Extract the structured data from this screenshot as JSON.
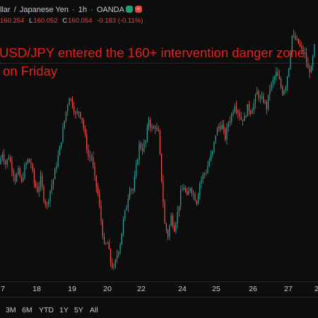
{
  "header": {
    "symbol_fragment": "llar",
    "separator": "/",
    "quote_currency": "Japanese Yen",
    "interval": "1h",
    "exchange": "OANDA",
    "dot_separator": "·",
    "status_red_glyph": "≈"
  },
  "ohlc": {
    "open_value": "160.254",
    "low_label": "L",
    "low_value": "160.052",
    "close_label": "C",
    "close_value": "160.054",
    "change": "-0.183 (-0.11%)"
  },
  "annotation": {
    "line1": "USD/JPY entered the 160+ intervention danger zone",
    "line2": "on Friday",
    "color": "#e8201c"
  },
  "x_axis": {
    "ticks": [
      "7",
      "18",
      "19",
      "20",
      "22",
      "24",
      "25",
      "26",
      "27",
      "2"
    ]
  },
  "range_buttons": [
    "3M",
    "6M",
    "YTD",
    "1Y",
    "5Y",
    "All"
  ],
  "colors": {
    "up": "#26a69a",
    "down": "#ef5350",
    "background": "#0d0d0d"
  },
  "chart_data": {
    "type": "candlestick",
    "y_axis_range": [
      154.0,
      160.6
    ],
    "close_path": [
      157.0,
      157.3,
      157.0,
      157.2,
      156.9,
      156.6,
      156.8,
      156.5,
      156.9,
      157.1,
      157.0,
      156.5,
      156.3,
      156.6,
      156.1,
      155.9,
      156.3,
      156.6,
      157.0,
      157.4,
      157.9,
      158.4,
      158.8,
      158.6,
      158.3,
      158.4,
      158.2,
      157.7,
      157.2,
      157.2,
      156.6,
      156.2,
      155.5,
      154.8,
      154.9,
      154.4,
      154.2,
      154.6,
      154.9,
      155.5,
      155.9,
      156.4,
      156.3,
      156.9,
      157.5,
      157.4,
      157.6,
      158.2,
      157.9,
      158.0,
      157.8,
      156.6,
      155.4,
      155.1,
      155.6,
      155.3,
      155.7,
      156.2,
      156.4,
      156.1,
      156.4,
      156.2,
      156.0,
      156.5,
      156.7,
      156.8,
      157.1,
      157.3,
      157.8,
      158.0,
      158.0,
      157.7,
      158.1,
      158.3,
      158.6,
      158.4,
      158.2,
      158.2,
      158.5,
      158.4,
      158.6,
      158.9,
      158.7,
      158.7,
      158.5,
      159.0,
      159.2,
      159.4,
      159.2,
      158.9,
      159.1,
      159.6,
      160.4,
      160.3,
      160.2,
      160.0,
      159.9,
      159.5,
      159.5,
      160.1
    ]
  }
}
